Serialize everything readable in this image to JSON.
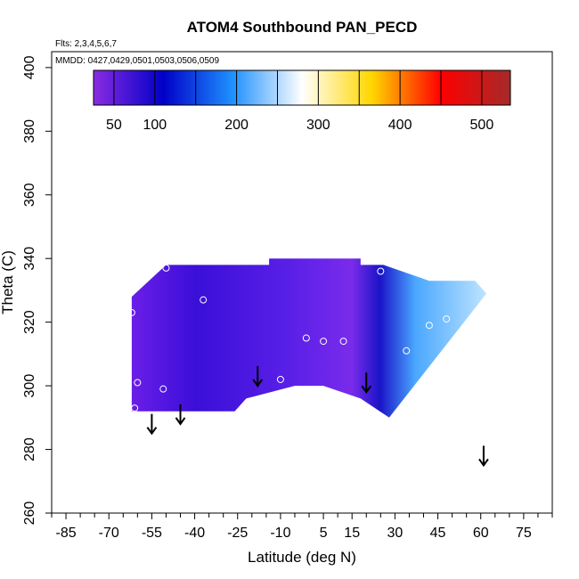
{
  "chart_data": {
    "type": "heatmap",
    "title": "ATOM4 Southbound PAN_PECD",
    "annotations": {
      "flights": "Flts: 2,3,4,5,6,7",
      "dates": "MMDD: 0427,0429,0501,0503,0506,0509"
    },
    "xlabel": "Latitude (deg N)",
    "ylabel": "Theta (C)",
    "xlim": [
      -90,
      85
    ],
    "ylim": [
      260,
      405
    ],
    "x_ticks": [
      -85,
      -70,
      -55,
      -40,
      -25,
      -10,
      5,
      15,
      30,
      45,
      60,
      75
    ],
    "x_tick_labels": [
      "-85",
      "-70",
      "-55",
      "-40",
      "-25",
      "-10",
      "5",
      "15",
      "30",
      "45",
      "60",
      "75"
    ],
    "y_ticks": [
      260,
      280,
      300,
      320,
      340,
      360,
      380,
      400
    ],
    "y_tick_labels": [
      "260",
      "280",
      "300",
      "320",
      "340",
      "360",
      "380",
      "400"
    ],
    "colorbar": {
      "range": [
        25,
        535
      ],
      "ticks": [
        50,
        100,
        200,
        300,
        400,
        500
      ],
      "tick_labels": [
        "50",
        "100",
        "200",
        "300",
        "400",
        "500"
      ],
      "colors": [
        "#8a2be2",
        "#0000c8",
        "#1e90ff",
        "#ffffff",
        "#ffd700",
        "#ff0000",
        "#a52a2a"
      ]
    },
    "field_outline": [
      [
        -62,
        292
      ],
      [
        -62,
        328
      ],
      [
        -50,
        338
      ],
      [
        -14,
        338
      ],
      [
        -14,
        340
      ],
      [
        18,
        340
      ],
      [
        18,
        338
      ],
      [
        26,
        338
      ],
      [
        42,
        333
      ],
      [
        58,
        333
      ],
      [
        62,
        329
      ],
      [
        28,
        290
      ],
      [
        18,
        296
      ],
      [
        5,
        300
      ],
      [
        -5,
        300
      ],
      [
        -22,
        296
      ],
      [
        -26,
        292
      ]
    ],
    "observations": [
      {
        "lat": -62,
        "theta": 323
      },
      {
        "lat": -60,
        "theta": 301
      },
      {
        "lat": -61,
        "theta": 293
      },
      {
        "lat": -50,
        "theta": 337
      },
      {
        "lat": -51,
        "theta": 299
      },
      {
        "lat": -37,
        "theta": 327
      },
      {
        "lat": -10,
        "theta": 302
      },
      {
        "lat": -1,
        "theta": 315
      },
      {
        "lat": 5,
        "theta": 314
      },
      {
        "lat": 12,
        "theta": 314
      },
      {
        "lat": 25,
        "theta": 336
      },
      {
        "lat": 34,
        "theta": 311
      },
      {
        "lat": 42,
        "theta": 319
      },
      {
        "lat": 48,
        "theta": 321
      }
    ],
    "tropopause_arrows": [
      {
        "lat": -55,
        "theta": 285
      },
      {
        "lat": -45,
        "theta": 288
      },
      {
        "lat": -18,
        "theta": 300
      },
      {
        "lat": 20,
        "theta": 298
      },
      {
        "lat": 61,
        "theta": 275
      }
    ]
  }
}
